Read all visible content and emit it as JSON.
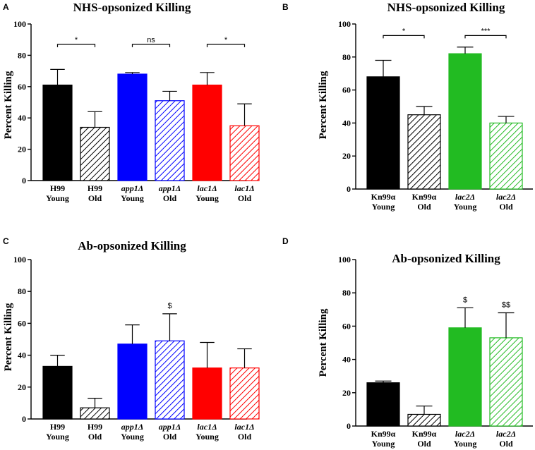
{
  "chart_data": [
    {
      "panel": "A",
      "type": "bar",
      "title": "NHS-opsonized Killing",
      "ylabel": "Percent Killing",
      "xlabel": "",
      "ylim": [
        0,
        100
      ],
      "yticks": [
        0,
        20,
        40,
        60,
        80,
        100
      ],
      "categories": [
        {
          "line1": "H99",
          "line1_italic": false,
          "line2": "Young"
        },
        {
          "line1": "H99",
          "line1_italic": false,
          "line2": "Old"
        },
        {
          "line1": "app1Δ",
          "line1_italic": true,
          "line2": "Young"
        },
        {
          "line1": "app1Δ",
          "line1_italic": true,
          "line2": "Old"
        },
        {
          "line1": "lac1Δ",
          "line1_italic": true,
          "line2": "Young"
        },
        {
          "line1": "lac1Δ",
          "line1_italic": true,
          "line2": "Old"
        }
      ],
      "values": [
        61,
        34,
        68,
        51,
        61,
        35
      ],
      "errors": [
        10,
        10,
        1,
        6,
        8,
        14
      ],
      "colors": [
        "#000000",
        "#000000",
        "#0000ff",
        "#0000ff",
        "#ff0000",
        "#ff0000"
      ],
      "patterns": [
        "solid",
        "hatch",
        "solid",
        "hatch",
        "solid",
        "hatch"
      ],
      "comparisons": [
        {
          "from": 0,
          "to": 1,
          "y": 87,
          "label": "*"
        },
        {
          "from": 2,
          "to": 3,
          "y": 87,
          "label": "ns"
        },
        {
          "from": 4,
          "to": 5,
          "y": 87,
          "label": "*"
        }
      ],
      "annotations": []
    },
    {
      "panel": "B",
      "type": "bar",
      "title": "NHS-opsonized Killing",
      "ylabel": "Percent Killing",
      "xlabel": "",
      "ylim": [
        0,
        100
      ],
      "yticks": [
        0,
        20,
        40,
        60,
        80,
        100
      ],
      "categories": [
        {
          "line1": "Kn99α",
          "line1_italic": false,
          "line2": "Young"
        },
        {
          "line1": "Kn99α",
          "line1_italic": false,
          "line2": "Old"
        },
        {
          "line1": "lac2Δ",
          "line1_italic": true,
          "line2": "Young"
        },
        {
          "line1": "lac2Δ",
          "line1_italic": true,
          "line2": "Old"
        }
      ],
      "values": [
        68,
        45,
        82,
        40
      ],
      "errors": [
        10,
        5,
        4,
        4
      ],
      "colors": [
        "#000000",
        "#000000",
        "#22bb22",
        "#22bb22"
      ],
      "patterns": [
        "solid",
        "hatch",
        "solid",
        "hatch"
      ],
      "comparisons": [
        {
          "from": 0,
          "to": 1,
          "y": 93,
          "label": "*"
        },
        {
          "from": 2,
          "to": 3,
          "y": 93,
          "label": "***"
        }
      ],
      "annotations": []
    },
    {
      "panel": "C",
      "type": "bar",
      "title": "Ab-opsonized Killing",
      "ylabel": "Percent Killing",
      "xlabel": "",
      "ylim": [
        0,
        100
      ],
      "yticks": [
        0,
        20,
        40,
        60,
        80,
        100
      ],
      "categories": [
        {
          "line1": "H99",
          "line1_italic": false,
          "line2": "Young"
        },
        {
          "line1": "H99",
          "line1_italic": false,
          "line2": "Old"
        },
        {
          "line1": "app1Δ",
          "line1_italic": true,
          "line2": "Young"
        },
        {
          "line1": "app1Δ",
          "line1_italic": true,
          "line2": "Old"
        },
        {
          "line1": "lac1Δ",
          "line1_italic": true,
          "line2": "Young"
        },
        {
          "line1": "lac1Δ",
          "line1_italic": true,
          "line2": "Old"
        }
      ],
      "values": [
        33,
        7,
        47,
        49,
        32,
        32
      ],
      "errors": [
        7,
        6,
        12,
        17,
        16,
        12
      ],
      "colors": [
        "#000000",
        "#000000",
        "#0000ff",
        "#0000ff",
        "#ff0000",
        "#ff0000"
      ],
      "patterns": [
        "solid",
        "hatch",
        "solid",
        "hatch",
        "solid",
        "hatch"
      ],
      "comparisons": [],
      "annotations": [
        {
          "bar": 3,
          "label": "$"
        }
      ]
    },
    {
      "panel": "D",
      "type": "bar",
      "title": "Ab-opsonized Killing",
      "ylabel": "Percent Killing",
      "xlabel": "",
      "ylim": [
        0,
        100
      ],
      "yticks": [
        0,
        20,
        40,
        60,
        80,
        100
      ],
      "categories": [
        {
          "line1": "Kn99α",
          "line1_italic": false,
          "line2": "Young"
        },
        {
          "line1": "Kn99α",
          "line1_italic": false,
          "line2": "Old"
        },
        {
          "line1": "lac2Δ",
          "line1_italic": true,
          "line2": "Young"
        },
        {
          "line1": "lac2Δ",
          "line1_italic": true,
          "line2": "Old"
        }
      ],
      "values": [
        26,
        7,
        59,
        53
      ],
      "errors": [
        1,
        5,
        12,
        15
      ],
      "colors": [
        "#000000",
        "#000000",
        "#22bb22",
        "#22bb22"
      ],
      "patterns": [
        "solid",
        "hatch",
        "solid",
        "hatch"
      ],
      "comparisons": [],
      "annotations": [
        {
          "bar": 2,
          "label": "$"
        },
        {
          "bar": 3,
          "label": "$$"
        }
      ]
    }
  ]
}
